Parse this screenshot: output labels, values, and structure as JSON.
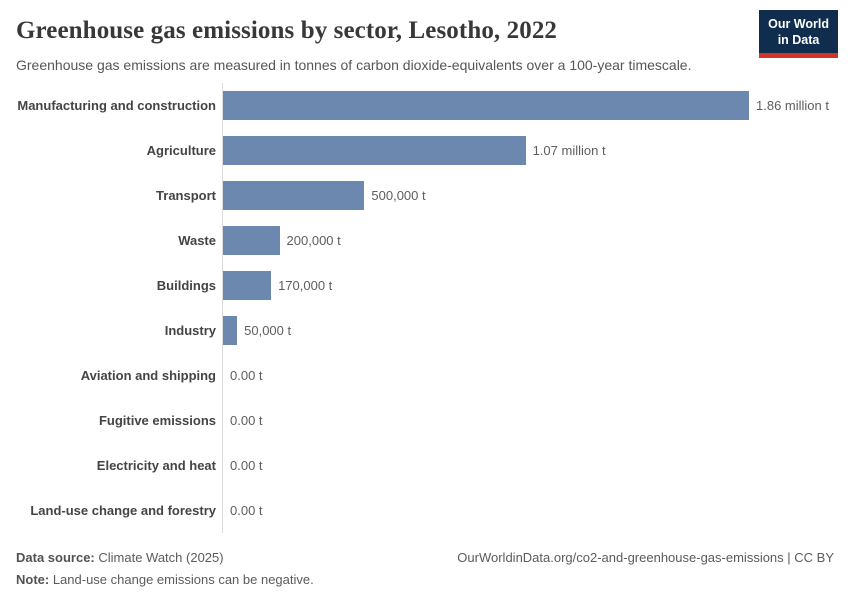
{
  "header": {
    "title": "Greenhouse gas emissions by sector, Lesotho, 2022",
    "subtitle": "Greenhouse gas emissions are measured in tonnes of carbon dioxide-equivalents over a 100-year timescale.",
    "logo": {
      "line1": "Our World",
      "line2": "in Data"
    }
  },
  "chart_data": {
    "type": "bar",
    "orientation": "horizontal",
    "title": "Greenhouse gas emissions by sector, Lesotho, 2022",
    "unit": "t",
    "xlim": [
      0,
      1860000
    ],
    "grid": false,
    "legend": "none",
    "bar_color": "#6d88ae",
    "categories": [
      "Manufacturing and construction",
      "Agriculture",
      "Transport",
      "Waste",
      "Buildings",
      "Industry",
      "Aviation and shipping",
      "Fugitive emissions",
      "Electricity and heat",
      "Land-use change and forestry"
    ],
    "values": [
      1860000,
      1070000,
      500000,
      200000,
      170000,
      50000,
      0,
      0,
      0,
      0
    ],
    "value_labels": [
      "1.86 million t",
      "1.07 million t",
      "500,000 t",
      "200,000 t",
      "170,000 t",
      "50,000 t",
      "0.00 t",
      "0.00 t",
      "0.00 t",
      "0.00 t"
    ]
  },
  "footer": {
    "source_label": "Data source:",
    "source_value": " Climate Watch (2025)",
    "note_label": "Note:",
    "note_value": " Land-use change emissions can be negative.",
    "citation": "OurWorldinData.org/co2-and-greenhouse-gas-emissions | CC BY"
  },
  "colors": {
    "bar": "#6d88ae",
    "axis_line": "#dcdcdc",
    "logo_background": "#102d4e",
    "logo_underline": "#d0342c",
    "title_text": "#383838",
    "body_text": "#5b5b5b"
  }
}
